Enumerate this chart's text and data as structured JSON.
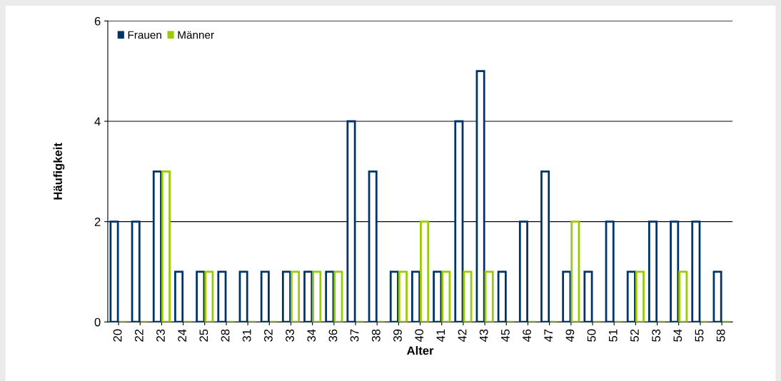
{
  "chart_data": {
    "type": "bar",
    "xlabel": "Alter",
    "ylabel": "Häufigkeit",
    "categories": [
      "20",
      "22",
      "23",
      "24",
      "25",
      "28",
      "31",
      "32",
      "33",
      "34",
      "36",
      "37",
      "38",
      "39",
      "40",
      "41",
      "42",
      "43",
      "45",
      "46",
      "47",
      "49",
      "50",
      "51",
      "52",
      "53",
      "54",
      "55",
      "58"
    ],
    "series": [
      {
        "name": "Frauen",
        "color": "#003366",
        "values": [
          2,
          2,
          3,
          1,
          1,
          1,
          1,
          1,
          1,
          1,
          1,
          4,
          3,
          1,
          1,
          1,
          4,
          5,
          1,
          2,
          3,
          1,
          1,
          2,
          1,
          2,
          2,
          2,
          1
        ]
      },
      {
        "name": "Männer",
        "color": "#99cc00",
        "values": [
          0,
          0,
          3,
          0,
          1,
          0,
          0,
          0,
          1,
          1,
          1,
          0,
          0,
          1,
          2,
          1,
          1,
          1,
          0,
          0,
          0,
          2,
          0,
          0,
          1,
          0,
          1,
          0,
          0
        ]
      }
    ],
    "ylim": [
      0,
      6
    ],
    "yticks": [
      0,
      2,
      4,
      6
    ],
    "grid": "y",
    "legend": "top left"
  }
}
